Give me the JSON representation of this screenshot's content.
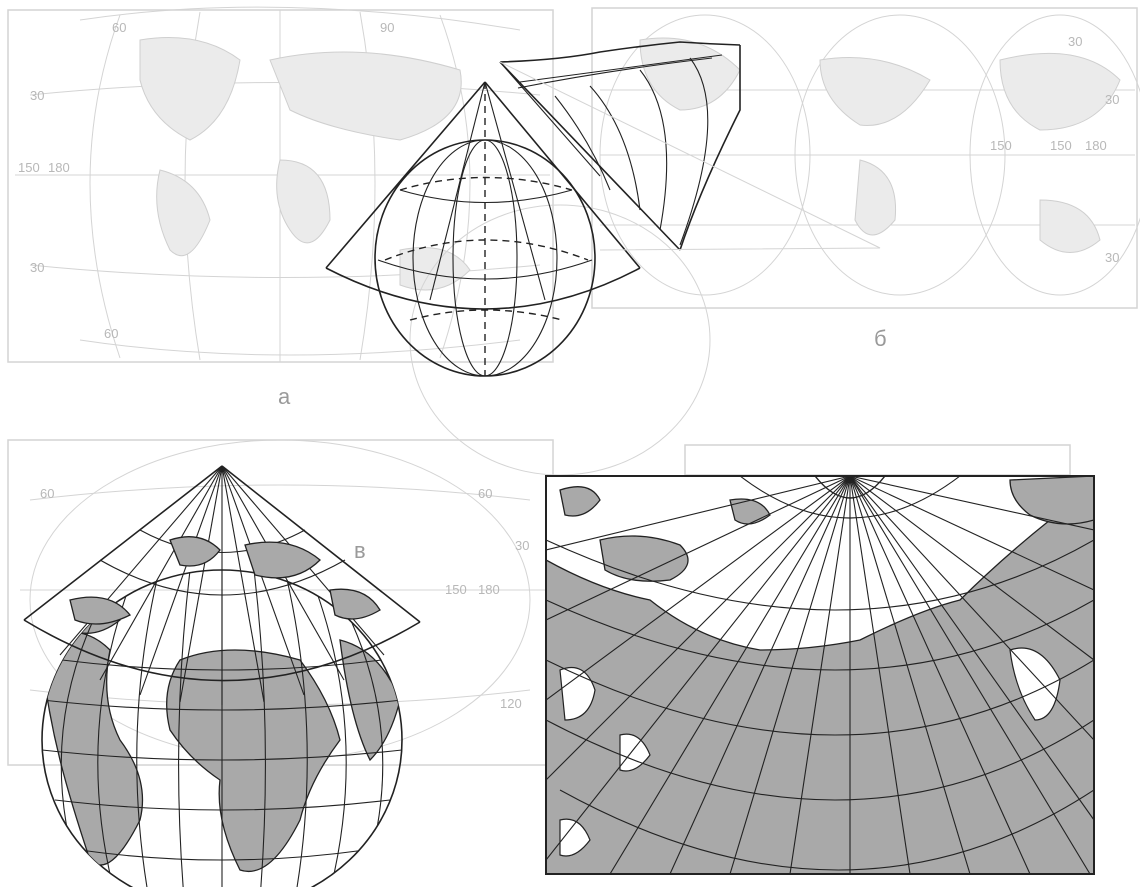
{
  "panels": {
    "a": {
      "letter": "а",
      "ghost_labels": [
        "60",
        "30",
        "150",
        "180",
        "30",
        "60",
        "90"
      ]
    },
    "b": {
      "letter": "б",
      "ghost_labels": [
        "30",
        "30",
        "150",
        "180",
        "150",
        "30"
      ]
    },
    "c": {
      "letter": "в",
      "ghost_labels": [
        "60",
        "30",
        "60",
        "180",
        "150",
        "120"
      ]
    }
  },
  "colors": {
    "land": "#a9a9a9",
    "ink": "#222222",
    "faint": "#d4d4d4"
  }
}
